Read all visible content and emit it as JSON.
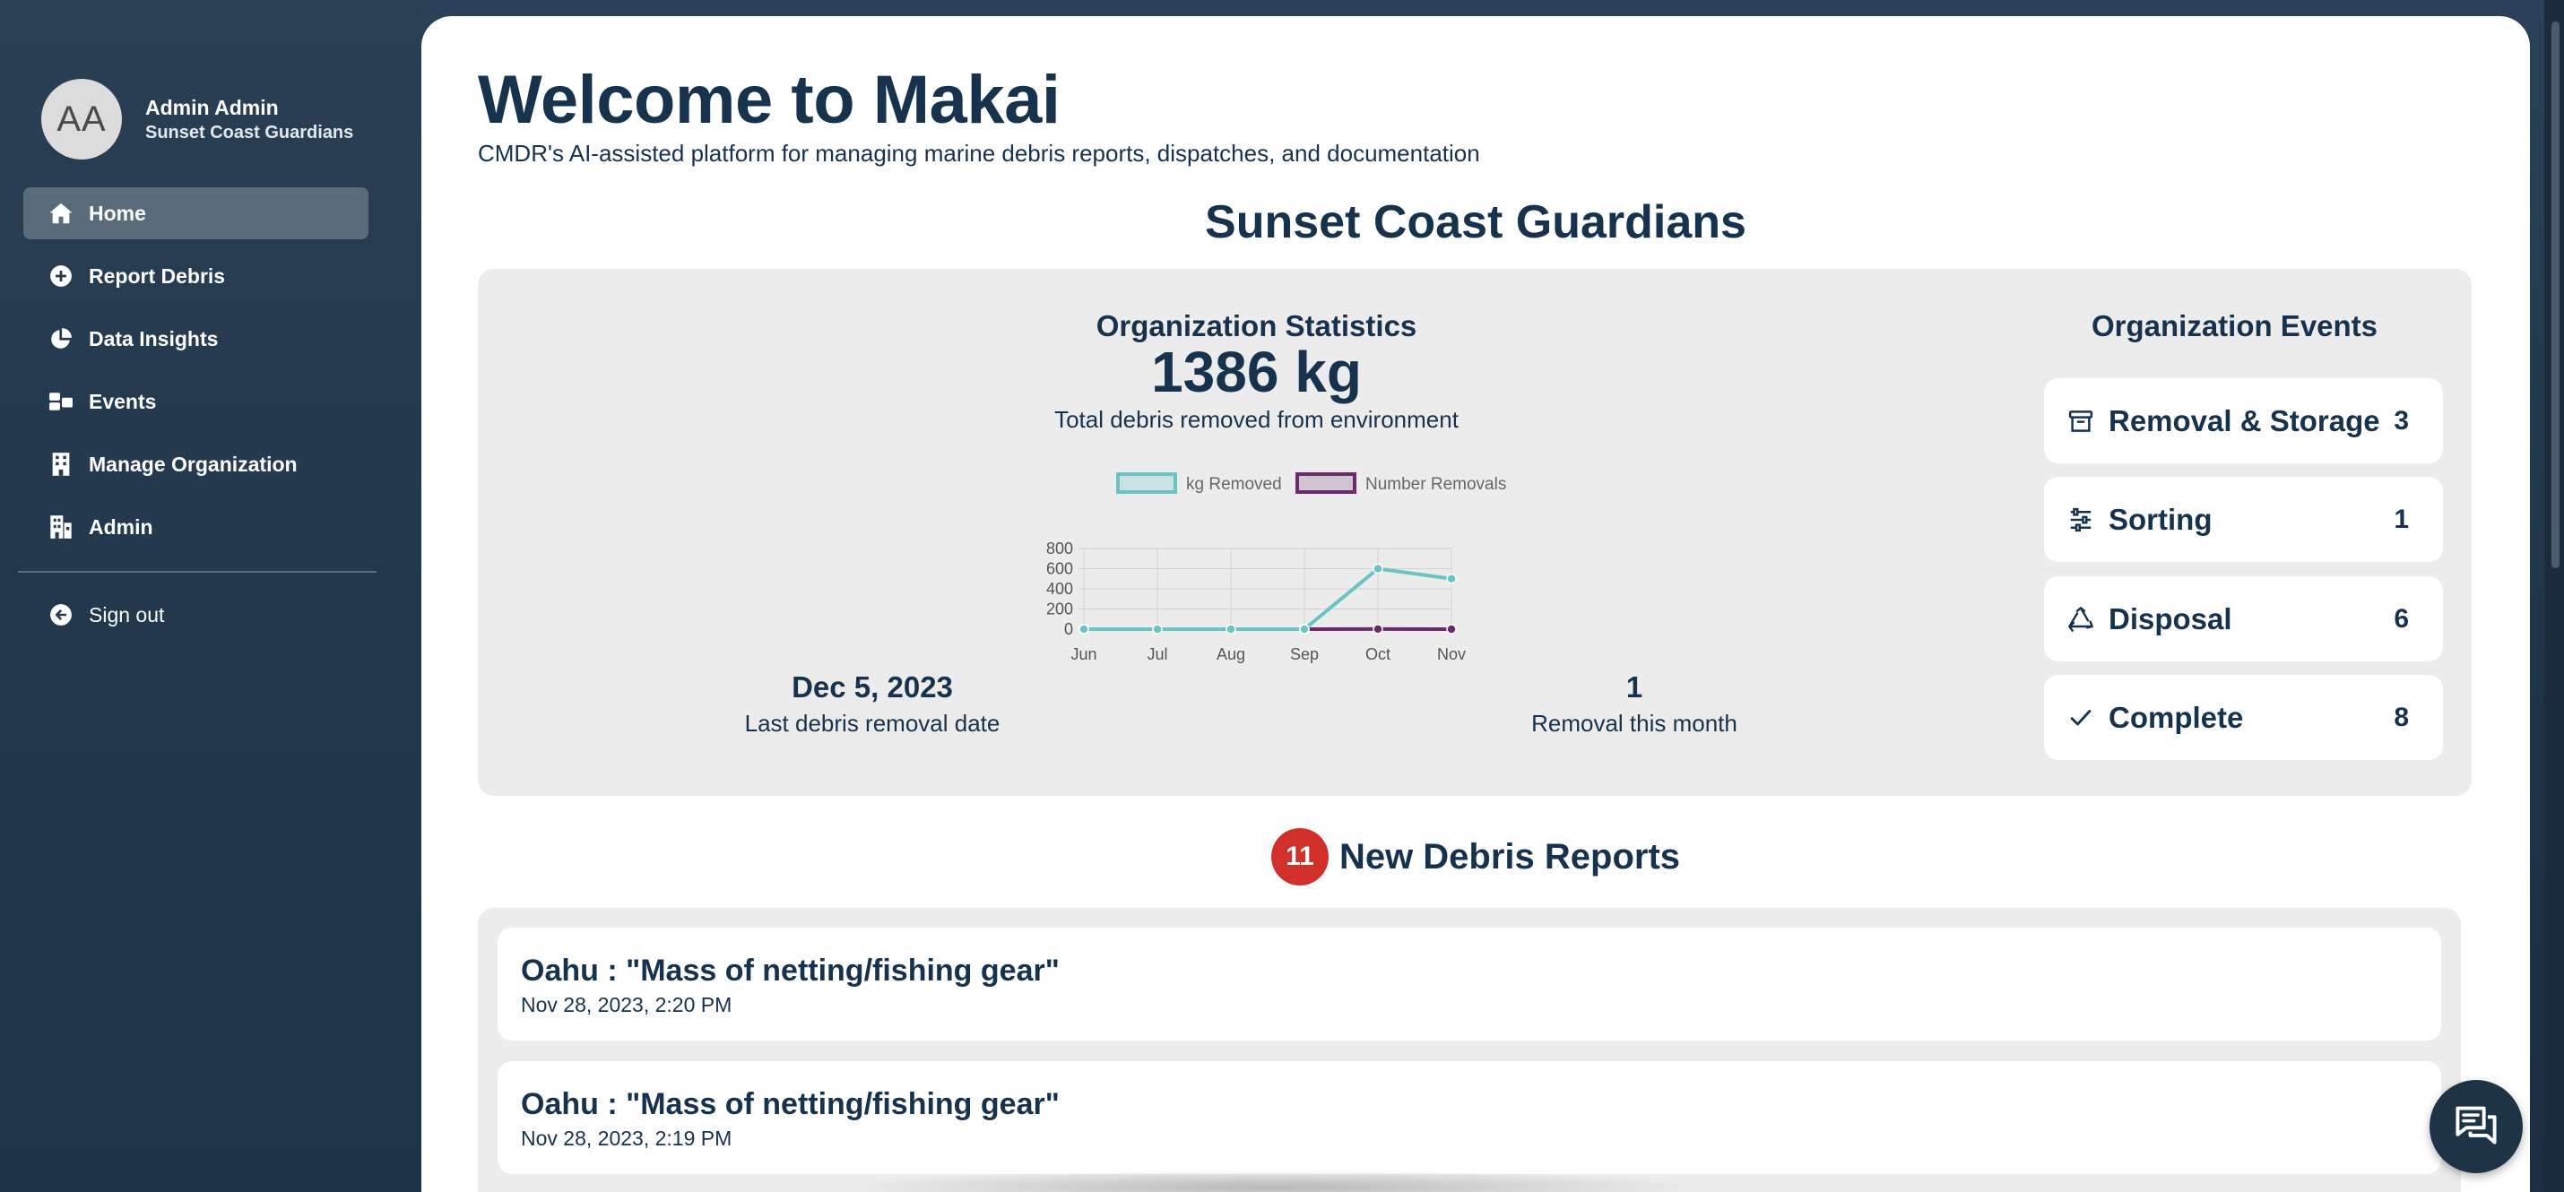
{
  "sidebar": {
    "avatar_initials": "AA",
    "user_name": "Admin Admin",
    "user_org": "Sunset Coast Guardians",
    "items": [
      {
        "label": "Home",
        "icon": "home-icon",
        "active": true
      },
      {
        "label": "Report Debris",
        "icon": "plus-circle-icon"
      },
      {
        "label": "Data Insights",
        "icon": "pie-chart-icon"
      },
      {
        "label": "Events",
        "icon": "events-icon"
      },
      {
        "label": "Manage Organization",
        "icon": "building-icon"
      },
      {
        "label": "Admin",
        "icon": "admin-building-icon"
      }
    ],
    "signout_label": "Sign out"
  },
  "main": {
    "welcome": "Welcome to Makai",
    "subtitle": "CMDR's AI-assisted platform for managing marine debris reports, dispatches, and documentation",
    "org_name": "Sunset Coast Guardians"
  },
  "stats": {
    "title": "Organization Statistics",
    "total_kg": "1386 kg",
    "total_kg_label": "Total debris removed from environment",
    "last_removal_date": "Dec 5, 2023",
    "last_removal_label": "Last debris removal date",
    "removals_this_month": "1",
    "removals_this_month_label": "Removal this month"
  },
  "chart_data": {
    "type": "line",
    "categories": [
      "Jun",
      "Jul",
      "Aug",
      "Sep",
      "Oct",
      "Nov"
    ],
    "series": [
      {
        "name": "kg Removed",
        "color": "#6cc3c4",
        "values": [
          0,
          0,
          0,
          0,
          600,
          500
        ]
      },
      {
        "name": "Number Removals",
        "color": "#6b2a6b",
        "values": [
          0,
          0,
          0,
          0,
          1,
          0
        ]
      }
    ],
    "y_ticks": [
      "0",
      "200",
      "400",
      "600",
      "800"
    ],
    "ylim": [
      0,
      800
    ],
    "grid": true,
    "legend": "top"
  },
  "events": {
    "title": "Organization Events",
    "items": [
      {
        "label": "Removal & Storage",
        "count": "3",
        "icon": "archive-box-icon"
      },
      {
        "label": "Sorting",
        "count": "1",
        "icon": "sliders-icon"
      },
      {
        "label": "Disposal",
        "count": "6",
        "icon": "recycle-icon"
      },
      {
        "label": "Complete",
        "count": "8",
        "icon": "checkmark-icon"
      }
    ]
  },
  "reports": {
    "count": "11",
    "title": "New Debris Reports",
    "items": [
      {
        "title": "Oahu : \"Mass of netting/fishing gear\"",
        "date": "Nov 28, 2023, 2:20 PM"
      },
      {
        "title": "Oahu : \"Mass of netting/fishing gear\"",
        "date": "Nov 28, 2023, 2:19 PM"
      }
    ]
  },
  "colors": {
    "navy": "#17324d",
    "badge_red": "#d12f2a",
    "sidebar_active": "#5a6b7b",
    "card_gray": "#ececec"
  }
}
